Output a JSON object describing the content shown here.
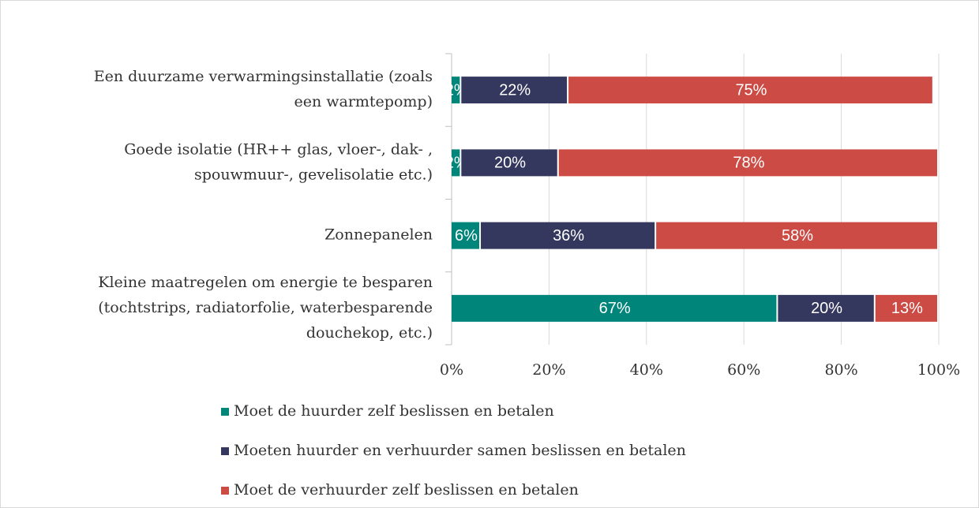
{
  "chart_data": {
    "type": "stacked_barh",
    "categories": [
      [
        "Een duurzame verwarmingsinstallatie (zoals",
        "een warmtepomp)"
      ],
      [
        "Goede isolatie (HR++ glas, vloer-, dak- ,",
        "spouwmuur-, gevelisolatie etc.)"
      ],
      [
        "Zonnepanelen"
      ],
      [
        "Kleine maatregelen om energie te besparen",
        "(tochtstrips, radiatorfolie, waterbesparende",
        "douchekop, etc.)"
      ]
    ],
    "series": [
      {
        "name": "Moet de huurder zelf beslissen en betalen",
        "color": "#00857a",
        "values": [
          2,
          2,
          6,
          67
        ],
        "value_labels": [
          "2%",
          "2%",
          "6%",
          "67%"
        ]
      },
      {
        "name": "Moeten huurder en verhuurder samen beslissen en betalen",
        "color": "#34375e",
        "values": [
          22,
          20,
          36,
          20
        ],
        "value_labels": [
          "22%",
          "20%",
          "36%",
          "20%"
        ]
      },
      {
        "name": "Moet de verhuurder zelf beslissen en betalen",
        "color": "#cc4b44",
        "values": [
          75,
          78,
          58,
          13
        ],
        "value_labels": [
          "75%",
          "78%",
          "58%",
          "13%"
        ]
      }
    ],
    "xlim": [
      0,
      100
    ],
    "xticks": [
      {
        "value": 0,
        "label": "0%"
      },
      {
        "value": 20,
        "label": "20%"
      },
      {
        "value": 40,
        "label": "40%"
      },
      {
        "value": 60,
        "label": "60%"
      },
      {
        "value": 80,
        "label": "80%"
      },
      {
        "value": 100,
        "label": "100%"
      }
    ],
    "grid": true
  }
}
